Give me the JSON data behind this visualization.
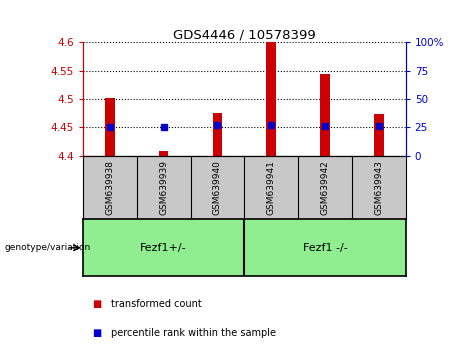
{
  "title": "GDS4446 / 10578399",
  "samples": [
    "GSM639938",
    "GSM639939",
    "GSM639940",
    "GSM639941",
    "GSM639942",
    "GSM639943"
  ],
  "bar_values": [
    4.502,
    4.408,
    4.475,
    4.601,
    4.544,
    4.474
  ],
  "percentile_values": [
    4.45,
    4.45,
    4.455,
    4.455,
    4.452,
    4.452
  ],
  "ylim_left": [
    4.4,
    4.6
  ],
  "ylim_right": [
    0,
    100
  ],
  "yticks_left": [
    4.4,
    4.45,
    4.5,
    4.55,
    4.6
  ],
  "yticks_right": [
    0,
    25,
    50,
    75,
    100
  ],
  "ytick_labels_left": [
    "4.4",
    "4.45",
    "4.5",
    "4.55",
    "4.6"
  ],
  "ytick_labels_right": [
    "0",
    "25",
    "50",
    "75",
    "100%"
  ],
  "bar_color": "#cc0000",
  "percentile_color": "#0000cc",
  "bar_bottom": 4.4,
  "group1_label": "Fezf1+/-",
  "group2_label": "Fezf1 -/-",
  "group1_indices": [
    0,
    1,
    2
  ],
  "group2_indices": [
    3,
    4,
    5
  ],
  "group_color": "#90ee90",
  "genotype_label": "genotype/variation",
  "legend_bar_label": "transformed count",
  "legend_pct_label": "percentile rank within the sample",
  "tick_color_left": "#cc0000",
  "tick_color_right": "#0000cc",
  "background_sample": "#c8c8c8"
}
